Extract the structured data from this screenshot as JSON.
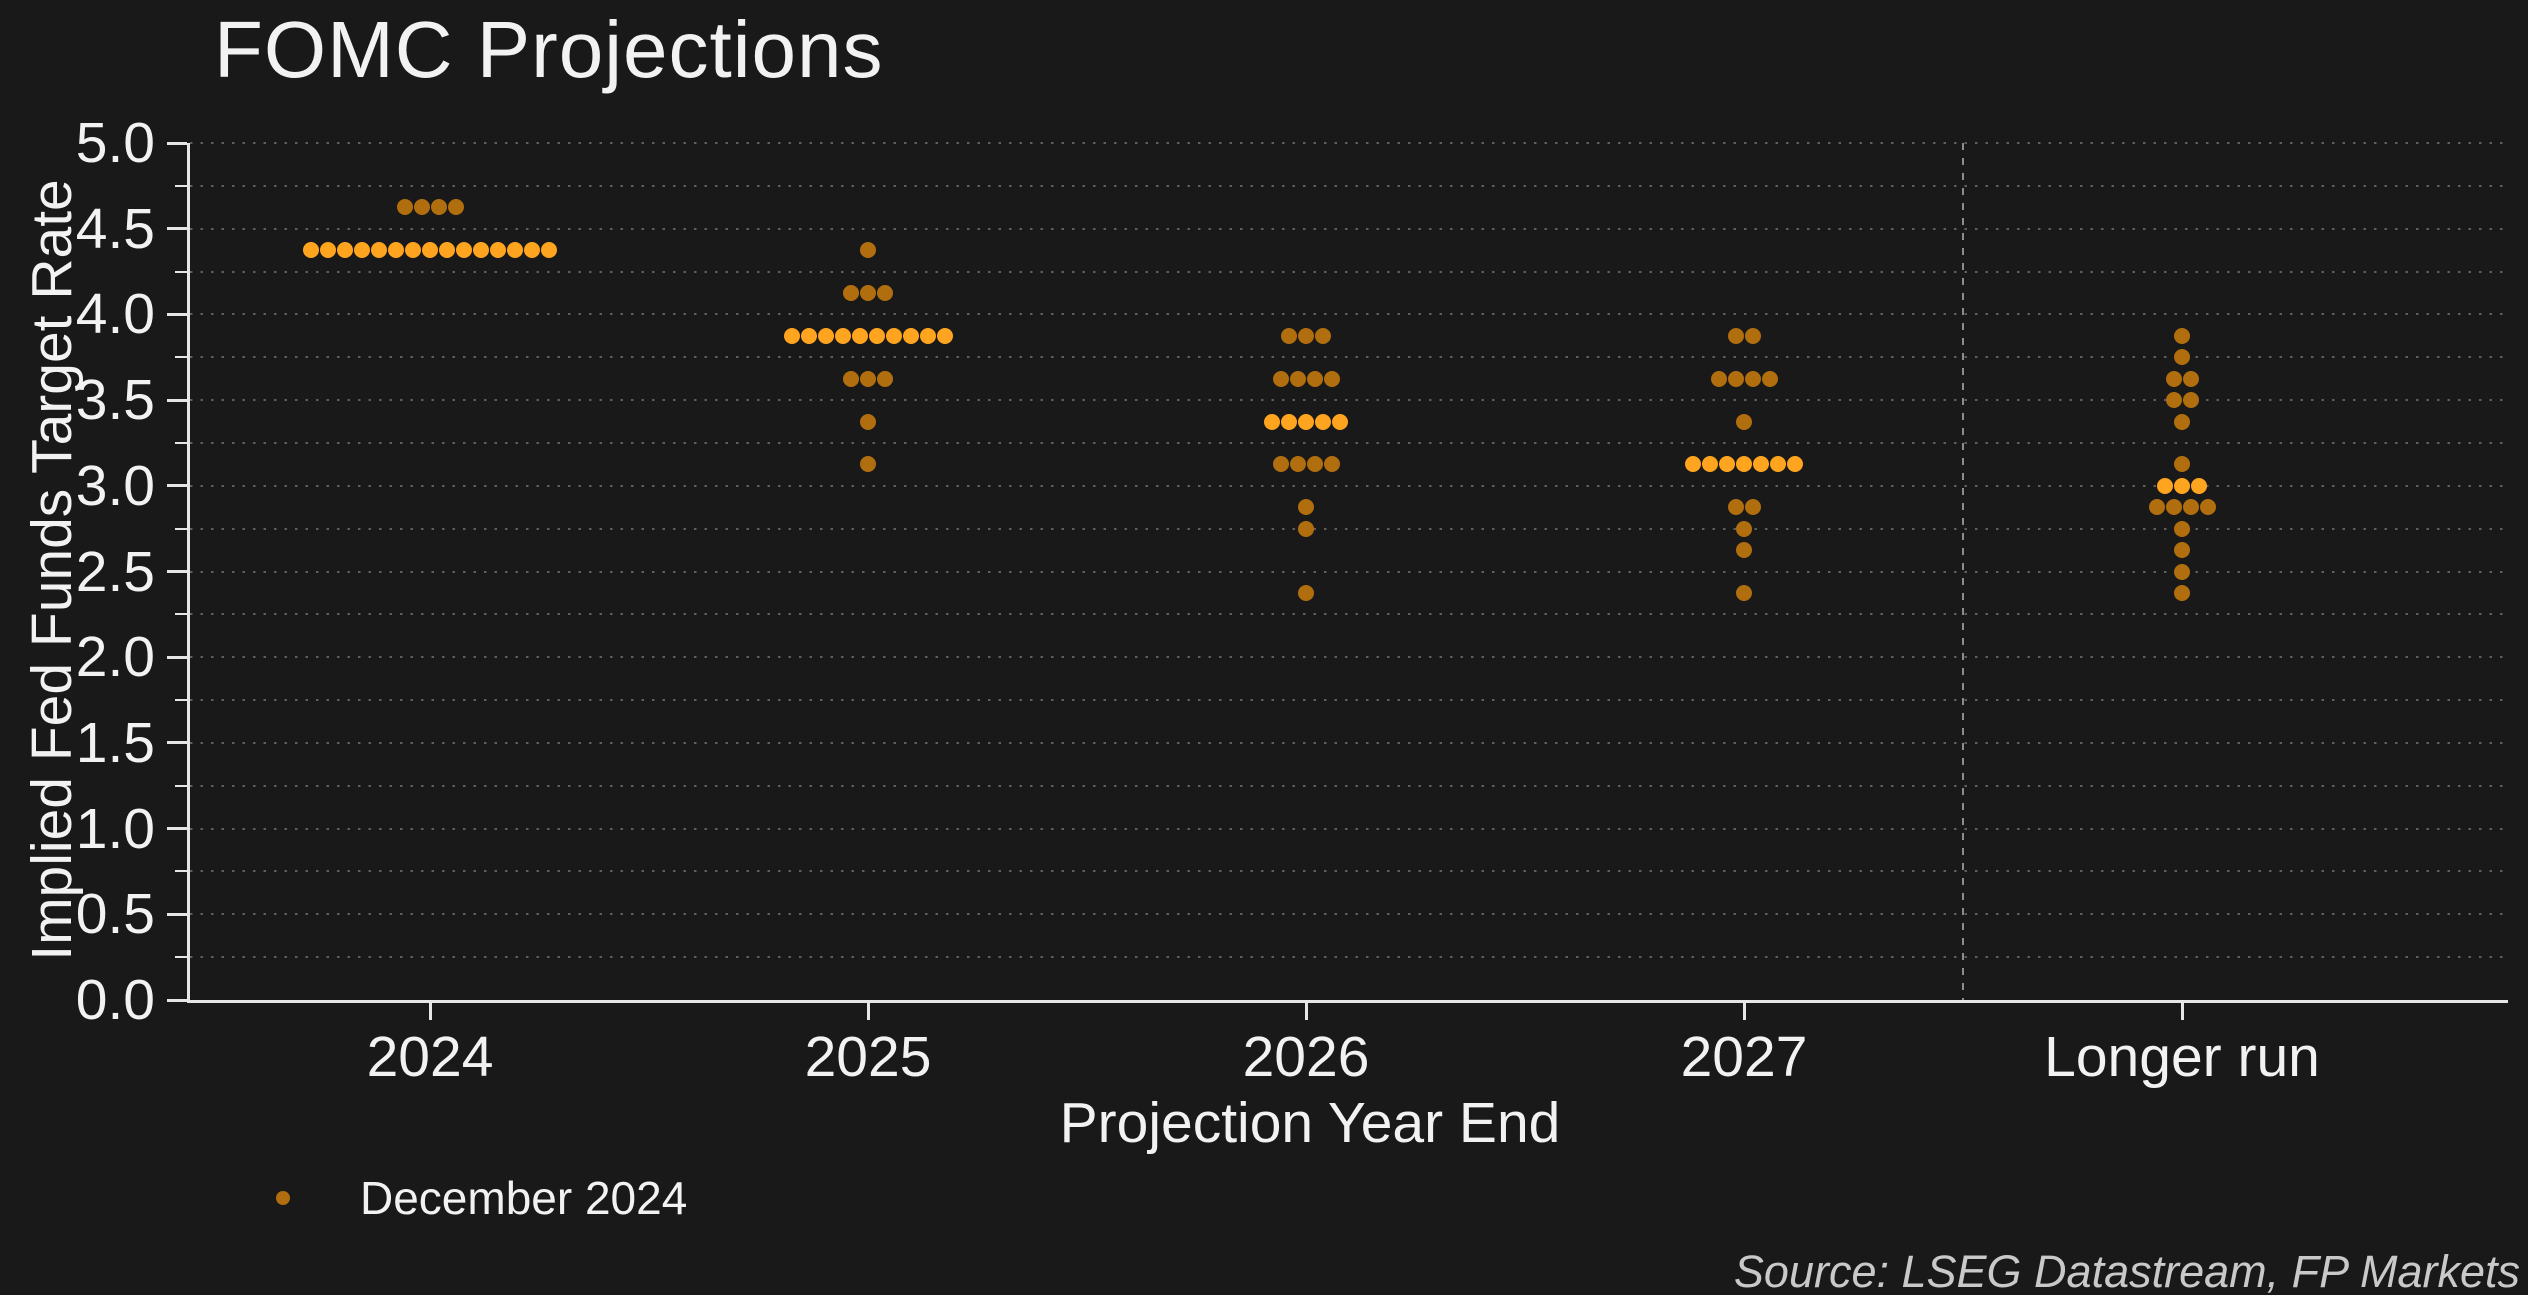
{
  "title": "FOMC Projections",
  "y_axis": {
    "label": "Implied Fed Funds Target Rate",
    "tick_labels": [
      "0.0",
      "0.5",
      "1.0",
      "1.5",
      "2.0",
      "2.5",
      "3.0",
      "3.5",
      "4.0",
      "4.5",
      "5.0"
    ],
    "min": 0.0,
    "max": 5.0,
    "major_step": 0.5,
    "minor_step": 0.25
  },
  "x_axis": {
    "label": "Projection Year End",
    "categories": [
      "2024",
      "2025",
      "2026",
      "2027",
      "Longer run"
    ]
  },
  "legend": {
    "label": "December 2024",
    "marker_color": "#b06e0e"
  },
  "source": "Source: LSEG Datastream, FP Markets",
  "colors": {
    "background": "#191919",
    "text": "#f2f2f2",
    "axis": "#e6e6e6",
    "grid": "#5f5f5f",
    "separator": "#8d8d8d",
    "dot": "#b06e0e",
    "dot_median": "#ffa41e",
    "source_text": "#c9c9c9"
  },
  "chart_data": {
    "type": "scatter",
    "variant": "fed_dot_plot",
    "title": "FOMC Projections",
    "xlabel": "Projection Year End",
    "ylabel": "Implied Fed Funds Target Rate",
    "ylim": [
      0.0,
      5.0
    ],
    "grid_step": 0.25,
    "grid_style": "dotted",
    "legend_position": "bottom-left",
    "series_name": "December 2024",
    "categories": [
      "2024",
      "2025",
      "2026",
      "2027",
      "Longer run"
    ],
    "separator_before_category": "Longer run",
    "medians": {
      "2024": 4.375,
      "2025": 3.875,
      "2026": 3.375,
      "2027": 3.125,
      "Longer run": 3.0
    },
    "median_rows_highlighted": true,
    "dot_rows": [
      {
        "category": "2024",
        "rate": 4.625,
        "count": 4,
        "median": false
      },
      {
        "category": "2024",
        "rate": 4.375,
        "count": 15,
        "median": true
      },
      {
        "category": "2025",
        "rate": 4.375,
        "count": 1,
        "median": false
      },
      {
        "category": "2025",
        "rate": 4.125,
        "count": 3,
        "median": false
      },
      {
        "category": "2025",
        "rate": 3.875,
        "count": 10,
        "median": true
      },
      {
        "category": "2025",
        "rate": 3.625,
        "count": 3,
        "median": false
      },
      {
        "category": "2025",
        "rate": 3.375,
        "count": 1,
        "median": false
      },
      {
        "category": "2025",
        "rate": 3.125,
        "count": 1,
        "median": false
      },
      {
        "category": "2026",
        "rate": 3.875,
        "count": 3,
        "median": false
      },
      {
        "category": "2026",
        "rate": 3.625,
        "count": 4,
        "median": false
      },
      {
        "category": "2026",
        "rate": 3.375,
        "count": 5,
        "median": true
      },
      {
        "category": "2026",
        "rate": 3.125,
        "count": 4,
        "median": false
      },
      {
        "category": "2026",
        "rate": 2.875,
        "count": 1,
        "median": false
      },
      {
        "category": "2026",
        "rate": 2.75,
        "count": 1,
        "median": false
      },
      {
        "category": "2026",
        "rate": 2.375,
        "count": 1,
        "median": false
      },
      {
        "category": "2027",
        "rate": 3.875,
        "count": 2,
        "median": false
      },
      {
        "category": "2027",
        "rate": 3.625,
        "count": 4,
        "median": false
      },
      {
        "category": "2027",
        "rate": 3.375,
        "count": 1,
        "median": false
      },
      {
        "category": "2027",
        "rate": 3.125,
        "count": 7,
        "median": true
      },
      {
        "category": "2027",
        "rate": 2.875,
        "count": 2,
        "median": false
      },
      {
        "category": "2027",
        "rate": 2.75,
        "count": 1,
        "median": false
      },
      {
        "category": "2027",
        "rate": 2.625,
        "count": 1,
        "median": false
      },
      {
        "category": "2027",
        "rate": 2.375,
        "count": 1,
        "median": false
      },
      {
        "category": "Longer run",
        "rate": 3.875,
        "count": 1,
        "median": false
      },
      {
        "category": "Longer run",
        "rate": 3.75,
        "count": 1,
        "median": false
      },
      {
        "category": "Longer run",
        "rate": 3.625,
        "count": 2,
        "median": false
      },
      {
        "category": "Longer run",
        "rate": 3.5,
        "count": 2,
        "median": false
      },
      {
        "category": "Longer run",
        "rate": 3.375,
        "count": 1,
        "median": false
      },
      {
        "category": "Longer run",
        "rate": 3.125,
        "count": 1,
        "median": false
      },
      {
        "category": "Longer run",
        "rate": 3.0,
        "count": 3,
        "median": true
      },
      {
        "category": "Longer run",
        "rate": 2.875,
        "count": 4,
        "median": false
      },
      {
        "category": "Longer run",
        "rate": 2.75,
        "count": 1,
        "median": false
      },
      {
        "category": "Longer run",
        "rate": 2.625,
        "count": 1,
        "median": false
      },
      {
        "category": "Longer run",
        "rate": 2.5,
        "count": 1,
        "median": false
      },
      {
        "category": "Longer run",
        "rate": 2.375,
        "count": 1,
        "median": false
      }
    ]
  }
}
